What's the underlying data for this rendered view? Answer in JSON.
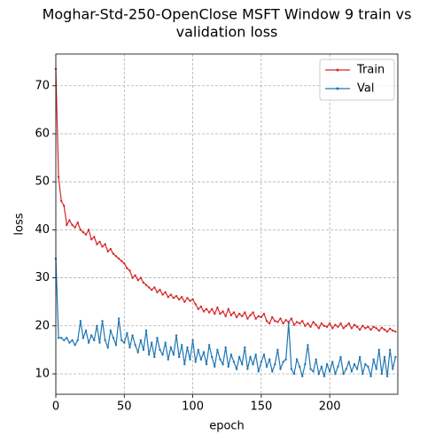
{
  "chart_data": {
    "type": "line",
    "title": [
      "Moghar-Std-250-OpenClose MSFT Window 9 train vs",
      "validation loss"
    ],
    "xlabel": "epoch",
    "ylabel": "loss",
    "x": [
      0,
      2,
      4,
      6,
      8,
      10,
      12,
      14,
      16,
      18,
      20,
      22,
      24,
      26,
      28,
      30,
      32,
      34,
      36,
      38,
      40,
      42,
      44,
      46,
      48,
      50,
      52,
      54,
      56,
      58,
      60,
      62,
      64,
      66,
      68,
      70,
      72,
      74,
      76,
      78,
      80,
      82,
      84,
      86,
      88,
      90,
      92,
      94,
      96,
      98,
      100,
      102,
      104,
      106,
      108,
      110,
      112,
      114,
      116,
      118,
      120,
      122,
      124,
      126,
      128,
      130,
      132,
      134,
      136,
      138,
      140,
      142,
      144,
      146,
      148,
      150,
      152,
      154,
      156,
      158,
      160,
      162,
      164,
      166,
      168,
      170,
      172,
      174,
      176,
      178,
      180,
      182,
      184,
      186,
      188,
      190,
      192,
      194,
      196,
      198,
      200,
      202,
      204,
      206,
      208,
      210,
      212,
      214,
      216,
      218,
      220,
      222,
      224,
      226,
      228,
      230,
      232,
      234,
      236,
      238,
      240,
      242,
      244,
      246,
      248
    ],
    "series": [
      {
        "name": "Train",
        "color": "#d62728",
        "values": [
          73.5,
          51,
          46,
          45,
          41,
          42,
          41,
          40.5,
          41.5,
          40,
          39.5,
          39,
          40,
          38,
          38.5,
          37,
          37.5,
          36.5,
          37,
          35.5,
          36,
          35,
          34.5,
          34,
          33.5,
          33,
          32,
          31.5,
          30,
          30.5,
          29.5,
          30,
          29,
          28.5,
          28,
          27.5,
          28,
          27,
          27.5,
          26.5,
          27,
          26,
          26.5,
          25.8,
          26.2,
          25.5,
          26,
          25,
          25.8,
          25.2,
          25.5,
          24.5,
          23.5,
          24,
          23,
          23.5,
          22.8,
          23.5,
          22.5,
          23.8,
          22.5,
          23,
          22,
          23.5,
          22.2,
          22.8,
          21.8,
          22.5,
          22,
          22.8,
          21.5,
          22.2,
          22.8,
          21.5,
          22,
          21.8,
          22.5,
          21,
          20.5,
          21.8,
          21,
          20.8,
          21.5,
          20.5,
          21.2,
          20.8,
          21.5,
          20.2,
          20.8,
          20.5,
          21,
          20,
          20.5,
          19.8,
          20.8,
          20.2,
          19.5,
          20.5,
          20,
          19.8,
          20.5,
          19.5,
          20.2,
          19.8,
          20.5,
          19.5,
          20,
          20.5,
          19.5,
          20.2,
          19.8,
          19.2,
          20,
          19.5,
          19.8,
          19.2,
          19.8,
          19.5,
          19,
          19.6,
          19.2,
          18.8,
          19.4,
          19,
          18.8
        ]
      },
      {
        "name": "Val",
        "color": "#1f77b4",
        "values": [
          34,
          17.5,
          17.5,
          17,
          17.5,
          16.5,
          17,
          16,
          17,
          21,
          17.5,
          19,
          16.5,
          18,
          17,
          20,
          16.5,
          21,
          17,
          15.5,
          19,
          17.5,
          16,
          21.5,
          17,
          16.5,
          18.5,
          15.5,
          18,
          16,
          14.5,
          17,
          15,
          19,
          14,
          16.5,
          13.5,
          17.5,
          15,
          14,
          16.5,
          13,
          15.5,
          14,
          18,
          13.5,
          16,
          12,
          15.5,
          13,
          17,
          12.5,
          15,
          13,
          14.5,
          12,
          16,
          13.5,
          11.5,
          15,
          13,
          12,
          15.5,
          11.5,
          14,
          12.5,
          11,
          13.5,
          12,
          15.5,
          11,
          13.5,
          12,
          14,
          10.5,
          12.5,
          14,
          11.5,
          13,
          10.5,
          12,
          15,
          11,
          12.5,
          13,
          20.5,
          11,
          10,
          13,
          11.5,
          9.5,
          12,
          16,
          11,
          10.5,
          13,
          10,
          11.5,
          9.5,
          12,
          10.5,
          12.5,
          10,
          11.5,
          13.5,
          10,
          11,
          12.5,
          10.5,
          12,
          11,
          13.5,
          10,
          12,
          11.5,
          9.5,
          13,
          11,
          15,
          10,
          13.5,
          9.5,
          15,
          11,
          13.5
        ]
      }
    ],
    "xlim": [
      0,
      249.7
    ],
    "ylim": [
      5.75,
      76.6
    ],
    "xticks": [
      0,
      50,
      100,
      150,
      200
    ],
    "yticks": [
      10,
      20,
      30,
      40,
      50,
      60,
      70
    ],
    "grid": true,
    "legend": "upper right"
  }
}
